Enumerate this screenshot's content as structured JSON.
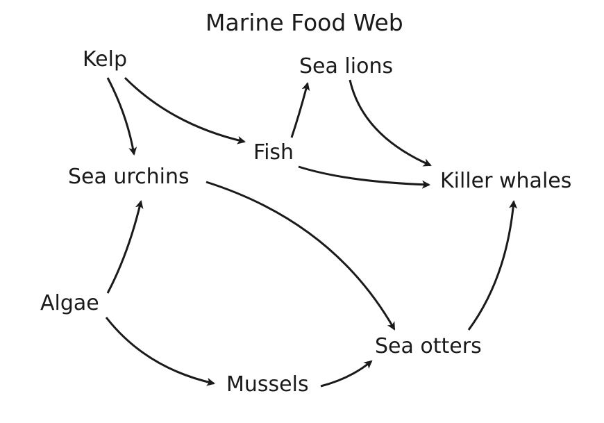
{
  "title": "Marine Food Web",
  "organisms": {
    "kelp": "Kelp",
    "sea_lions": "Sea lions",
    "fish": "Fish",
    "sea_urchins": "Sea urchins",
    "killer_whales": "Killer whales",
    "algae": "Algae",
    "sea_otters": "Sea otters",
    "mussels": "Mussels"
  },
  "edges": [
    {
      "from": "Kelp",
      "to": "Sea urchins"
    },
    {
      "from": "Kelp",
      "to": "Fish"
    },
    {
      "from": "Fish",
      "to": "Sea lions"
    },
    {
      "from": "Fish",
      "to": "Killer whales"
    },
    {
      "from": "Sea lions",
      "to": "Killer whales"
    },
    {
      "from": "Sea urchins",
      "to": "Sea otters"
    },
    {
      "from": "Algae",
      "to": "Sea urchins"
    },
    {
      "from": "Algae",
      "to": "Mussels"
    },
    {
      "from": "Mussels",
      "to": "Sea otters"
    },
    {
      "from": "Sea otters",
      "to": "Killer whales"
    }
  ]
}
